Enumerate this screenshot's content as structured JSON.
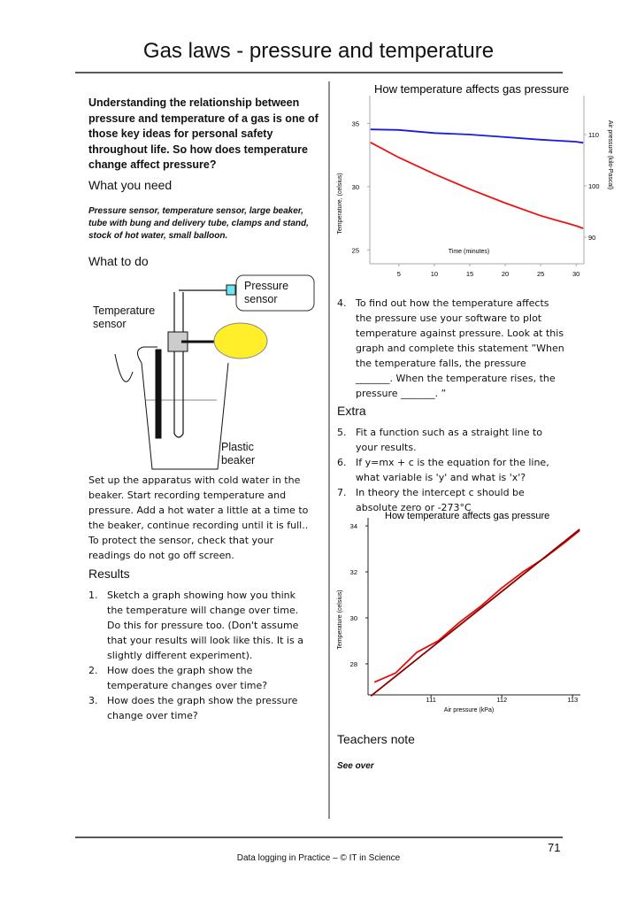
{
  "title": "Gas laws - pressure and temperature",
  "intro": "Understanding the relationship between pressure and temperature of a gas is one of those key ideas for personal safety throughout life. So how does temperature change affect pressure?",
  "what_you_need": {
    "heading": "What you need",
    "text": "Pressure sensor, temperature sensor, large beaker, tube with bung and delivery tube, clamps and stand, stock of hot water, small balloon."
  },
  "what_to_do": {
    "heading": "What to do",
    "diagram_labels": {
      "pressure_sensor": "Pressure sensor",
      "temperature_sensor": "Temperature sensor",
      "beaker": "Plastic beaker"
    },
    "text": "Set up the apparatus with cold water in the beaker. Start recording temperature and pressure. Add a hot water a little at a time to the beaker, continue recording until it is full.. To protect the sensor, check that your readings do not go off screen."
  },
  "results": {
    "heading": "Results",
    "items": [
      {
        "n": "1.",
        "text": "Sketch a graph showing how you think the temperature will change over time. Do this for pressure too. (Don't assume that your results will look like this. It is a slightly different experiment)."
      },
      {
        "n": "2.",
        "text": "How does the graph show the temperature changes over time?"
      },
      {
        "n": "3.",
        "text": "How does the graph show the pressure change over time?"
      }
    ]
  },
  "step4": {
    "n": "4.",
    "text": "To find out how the temperature affects the pressure use your software to plot temperature against pressure. Look at this graph and complete this statement ”When the temperature falls, the pressure _______. When the temperature rises, the pressure _______. ”"
  },
  "extra": {
    "heading": "Extra",
    "items": [
      {
        "n": "5.",
        "text": "Fit a function such as a straight line to your results."
      },
      {
        "n": "6.",
        "text": "If y=mx + c is the equation for the line, what variable is 'y' and what is 'x'?"
      },
      {
        "n": "7.",
        "text": "In theory the intercept c should be absolute zero or -273°C"
      }
    ]
  },
  "teachers_note": {
    "heading": "Teachers note",
    "text": "See over"
  },
  "footer": {
    "text": "Data logging in Practice – © IT in Science",
    "page_number": 71
  },
  "chart_data": [
    {
      "type": "line",
      "title": "How temperature affects gas pressure",
      "x_label": "Time (minutes)",
      "y_label": "Temperature, (celsius)",
      "y2_label": "Air pressure (kilo-Pascal)",
      "x": [
        1,
        5,
        10,
        15,
        20,
        25,
        30,
        31
      ],
      "xlim": [
        0.9,
        31.1
      ],
      "xticks": [
        5,
        10,
        15,
        20,
        25,
        30
      ],
      "ylim": [
        23.9,
        37.2
      ],
      "yticks": [
        25,
        30,
        35
      ],
      "y2lim": [
        84.8,
        117.6
      ],
      "y2ticks": [
        90,
        100,
        110
      ],
      "series": [
        {
          "color": "#ee1111",
          "values": [
            33.5,
            32.3,
            31.0,
            29.8,
            28.7,
            27.7,
            26.9,
            26.7
          ]
        },
        {
          "color": "#1a1ae0",
          "axis": "y2",
          "values": [
            111.0,
            110.9,
            110.3,
            110.0,
            109.5,
            109.0,
            108.6,
            108.4
          ]
        }
      ]
    },
    {
      "type": "line",
      "title": "How temperature affects gas pressure",
      "x_label": "Air pressure (kPa)",
      "y_label": "Temperature (celsius)",
      "xlim": [
        110.11,
        113.11
      ],
      "xticks": [
        111,
        112,
        113
      ],
      "ylim": [
        26.65,
        34.35
      ],
      "yticks": [
        28,
        30,
        32,
        34
      ],
      "series": [
        {
          "color": "#e01010",
          "x": [
            110.2,
            110.5,
            110.8,
            111.1,
            111.4,
            111.7,
            112.0,
            112.3,
            112.6,
            112.9,
            113.1
          ],
          "values": [
            27.2,
            27.6,
            28.5,
            29.0,
            29.8,
            30.5,
            31.3,
            32.0,
            32.6,
            33.3,
            33.8
          ]
        },
        {
          "color": "#8a0000",
          "x": [
            110.15,
            113.1
          ],
          "values": [
            26.6,
            33.85
          ]
        }
      ]
    }
  ]
}
